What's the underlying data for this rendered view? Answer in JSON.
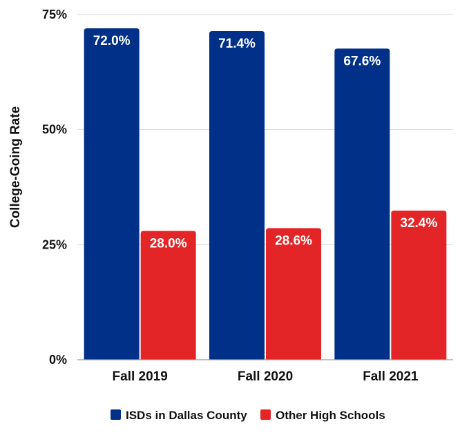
{
  "chart_data": {
    "type": "bar",
    "title": "",
    "xlabel": "",
    "ylabel": "College-Going Rate",
    "ylim": [
      0,
      75
    ],
    "yticks": [
      0,
      25,
      50,
      75
    ],
    "ytick_labels": [
      "0%",
      "25%",
      "50%",
      "75%"
    ],
    "grid": true,
    "legend": "bottom",
    "categories": [
      "Fall 2019",
      "Fall 2020",
      "Fall 2021"
    ],
    "series": [
      {
        "name": "ISDs in Dallas County",
        "color": "#003087",
        "values": [
          72.0,
          71.4,
          67.6
        ],
        "labels": [
          "72.0%",
          "71.4%",
          "67.6%"
        ]
      },
      {
        "name": "Other High Schools",
        "color": "#e42527",
        "values": [
          28.0,
          28.6,
          32.4
        ],
        "labels": [
          "28.0%",
          "28.6%",
          "32.4%"
        ]
      }
    ]
  }
}
